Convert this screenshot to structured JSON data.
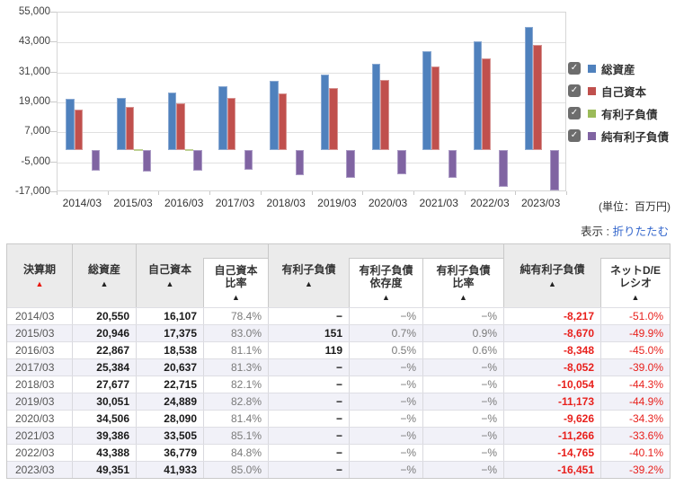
{
  "chart": {
    "unit_label": "(単位：百万円)",
    "y_tick_labels": [
      "55,000",
      "43,000",
      "31,000",
      "19,000",
      "7,000",
      "-5,000",
      "-17,000"
    ]
  },
  "chart_data": {
    "type": "bar",
    "title": "",
    "xlabel": "",
    "ylabel": "百万円",
    "ylim": [
      -17000,
      55000
    ],
    "ytick_step": 12000,
    "yticks": [
      55000,
      43000,
      31000,
      19000,
      7000,
      -5000,
      -17000
    ],
    "grid": true,
    "legend_position": "right",
    "categories": [
      "2014/03",
      "2015/03",
      "2016/03",
      "2017/03",
      "2018/03",
      "2019/03",
      "2020/03",
      "2021/03",
      "2022/03",
      "2023/03"
    ],
    "series": [
      {
        "name": "総資産",
        "color": "#4f81bd",
        "border": "#8aa9d2",
        "values": [
          20550,
          20946,
          22867,
          25384,
          27677,
          30051,
          34506,
          39386,
          43388,
          49351
        ]
      },
      {
        "name": "自己資本",
        "color": "#c0504d",
        "border": "#d79492",
        "values": [
          16107,
          17375,
          18538,
          20637,
          22715,
          24889,
          28090,
          33505,
          36779,
          41933
        ]
      },
      {
        "name": "有利子負債",
        "color": "#9bbb59",
        "border": "#bdd092",
        "values": [
          null,
          151,
          119,
          null,
          null,
          null,
          null,
          null,
          null,
          null
        ]
      },
      {
        "name": "純有利子負債",
        "color": "#8064a2",
        "border": "#ab9bc5",
        "values": [
          -8217,
          -8670,
          -8348,
          -8052,
          -10054,
          -11173,
          -9626,
          -11266,
          -14765,
          -16451
        ]
      }
    ]
  },
  "legend": {
    "items": [
      {
        "label": "総資産",
        "color": "#4f81bd",
        "checked": true
      },
      {
        "label": "自己資本",
        "color": "#c0504d",
        "checked": true
      },
      {
        "label": "有利子負債",
        "color": "#9bbb59",
        "checked": true
      },
      {
        "label": "純有利子負債",
        "color": "#8064a2",
        "checked": true
      }
    ],
    "check_glyph": "✓"
  },
  "toggle": {
    "label": "表示 :",
    "link": "折りたたむ"
  },
  "table": {
    "columns": [
      {
        "id": "period",
        "lines": [
          "決算期"
        ],
        "arrow": "red",
        "style": "plain"
      },
      {
        "id": "assets",
        "lines": [
          "総資産"
        ],
        "arrow": "dark",
        "style": "plain"
      },
      {
        "id": "equity",
        "lines": [
          "自己資本"
        ],
        "arrow": "dark",
        "style": "plain"
      },
      {
        "id": "equityRatio",
        "lines": [
          "自己資本",
          "比率"
        ],
        "arrow": "dark",
        "style": "sub"
      },
      {
        "id": "debt",
        "lines": [
          "有利子負債"
        ],
        "arrow": "dark",
        "style": "plain"
      },
      {
        "id": "debtDep",
        "lines": [
          "有利子負債",
          "依存度"
        ],
        "arrow": "dark",
        "style": "sub"
      },
      {
        "id": "debtRatio",
        "lines": [
          "有利子負債",
          "比率"
        ],
        "arrow": "dark",
        "style": "sub"
      },
      {
        "id": "netDebt",
        "lines": [
          "純有利子負債"
        ],
        "arrow": "dark",
        "style": "plain"
      },
      {
        "id": "netDE",
        "lines": [
          "ネットD/E",
          "レシオ"
        ],
        "arrow": "dark",
        "style": "sub"
      }
    ],
    "rows": [
      [
        "2014/03",
        "20,550",
        "16,107",
        "78.4%",
        "−",
        "−%",
        "−%",
        "-8,217",
        "-51.0%"
      ],
      [
        "2015/03",
        "20,946",
        "17,375",
        "83.0%",
        "151",
        "0.7%",
        "0.9%",
        "-8,670",
        "-49.9%"
      ],
      [
        "2016/03",
        "22,867",
        "18,538",
        "81.1%",
        "119",
        "0.5%",
        "0.6%",
        "-8,348",
        "-45.0%"
      ],
      [
        "2017/03",
        "25,384",
        "20,637",
        "81.3%",
        "−",
        "−%",
        "−%",
        "-8,052",
        "-39.0%"
      ],
      [
        "2018/03",
        "27,677",
        "22,715",
        "82.1%",
        "−",
        "−%",
        "−%",
        "-10,054",
        "-44.3%"
      ],
      [
        "2019/03",
        "30,051",
        "24,889",
        "82.8%",
        "−",
        "−%",
        "−%",
        "-11,173",
        "-44.9%"
      ],
      [
        "2020/03",
        "34,506",
        "28,090",
        "81.4%",
        "−",
        "−%",
        "−%",
        "-9,626",
        "-34.3%"
      ],
      [
        "2021/03",
        "39,386",
        "33,505",
        "85.1%",
        "−",
        "−%",
        "−%",
        "-11,266",
        "-33.6%"
      ],
      [
        "2022/03",
        "43,388",
        "36,779",
        "84.8%",
        "−",
        "−%",
        "−%",
        "-14,765",
        "-40.1%"
      ],
      [
        "2023/03",
        "49,351",
        "41,933",
        "85.0%",
        "−",
        "−%",
        "−%",
        "-16,451",
        "-39.2%"
      ]
    ]
  }
}
